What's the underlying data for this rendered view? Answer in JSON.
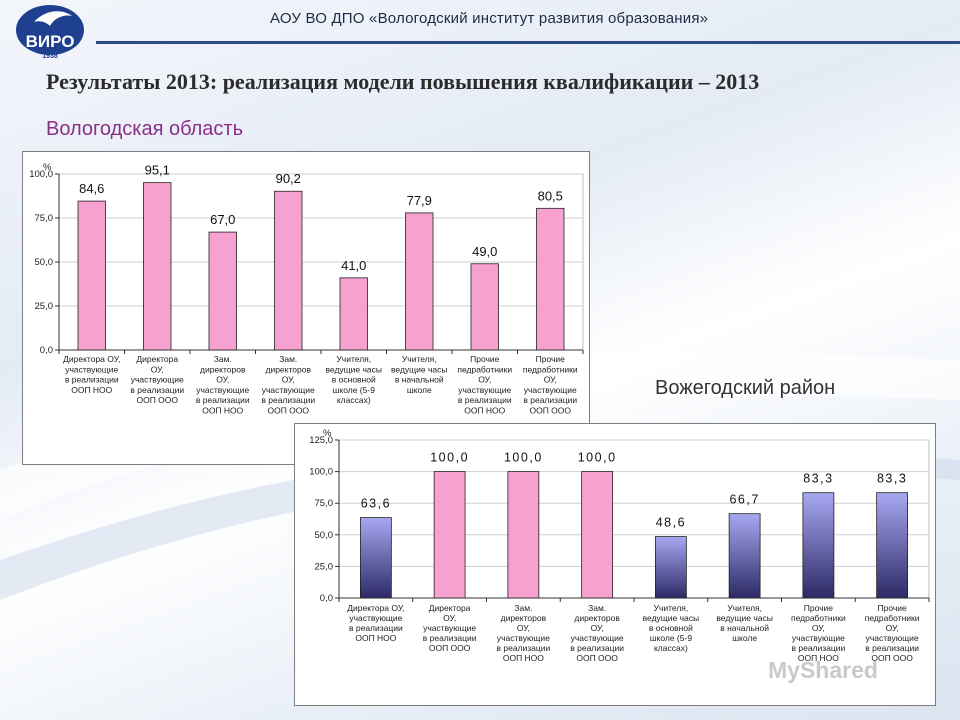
{
  "header": {
    "logo_text": "ВИРО",
    "logo_year": "1938",
    "org_title": "АОУ ВО ДПО «Вологодский институт развития образования»",
    "main_title": "Результаты 2013: реализация модели повышения квалификации – 2013"
  },
  "watermark": "MyShared",
  "colors": {
    "chart1_bar": "#f6a1cf",
    "chart2_bar_blue_top": "#a8a8f2",
    "chart2_bar_blue_bottom": "#2d2a66",
    "chart2_bar_pink": "#f6a1cf",
    "region1_title": "#8a2f88"
  },
  "chart_data": [
    {
      "type": "bar",
      "region": "Вологодская область",
      "unit_label": "%",
      "ylim": [
        0,
        100
      ],
      "yticks": [
        "0,0",
        "25,0",
        "50,0",
        "75,0",
        "100,0"
      ],
      "ytick_values": [
        0,
        25,
        50,
        75,
        100
      ],
      "categories": [
        [
          "Директора ОУ,",
          "участвующие",
          "в реализации",
          "ООП НОО"
        ],
        [
          "Директора",
          "ОУ,",
          "участвующие",
          "в реализации",
          "ООП ООО"
        ],
        [
          "Зам.",
          "директоров",
          "ОУ,",
          "участвующие",
          "в реализации",
          "ООП НОО"
        ],
        [
          "Зам.",
          "директоров",
          "ОУ,",
          "участвующие",
          "в реализации",
          "ООП ООО"
        ],
        [
          "Учителя,",
          "ведущие часы",
          "в основной",
          "школе (5-9",
          "классах)"
        ],
        [
          "Учителя,",
          "ведущие часы",
          "в начальной",
          "школе"
        ],
        [
          "Прочие",
          "педработники",
          "ОУ,",
          "участвующие",
          "в реализации",
          "ООП НОО"
        ],
        [
          "Прочие",
          "педработники",
          "ОУ,",
          "участвующие",
          "в реализации",
          "ООП ООО"
        ]
      ],
      "values": [
        84.6,
        95.1,
        67.0,
        90.2,
        41.0,
        77.9,
        49.0,
        80.5
      ],
      "value_labels": [
        "84,6",
        "95,1",
        "67,0",
        "90,2",
        "41,0",
        "77,9",
        "49,0",
        "80,5"
      ]
    },
    {
      "type": "bar",
      "region": "Вожегодский район",
      "unit_label": "%",
      "ylim": [
        0,
        125
      ],
      "yticks": [
        "0,0",
        "25,0",
        "50,0",
        "75,0",
        "100,0",
        "125,0"
      ],
      "ytick_values": [
        0,
        25,
        50,
        75,
        100,
        125
      ],
      "categories": [
        [
          "Директора ОУ,",
          "участвующие",
          "в реализации",
          "ООП НОО"
        ],
        [
          "Директора",
          "ОУ,",
          "участвующие",
          "в реализации",
          "ООП ООО"
        ],
        [
          "Зам.",
          "директоров",
          "ОУ,",
          "участвующие",
          "в реализации",
          "ООП НОО"
        ],
        [
          "Зам.",
          "директоров",
          "ОУ,",
          "участвующие",
          "в реализации",
          "ООП ООО"
        ],
        [
          "Учителя,",
          "ведущие часы",
          "в основной",
          "школе (5-9",
          "классах)"
        ],
        [
          "Учителя,",
          "ведущие часы",
          "в начальной",
          "школе"
        ],
        [
          "Прочие",
          "педработники",
          "ОУ,",
          "участвующие",
          "в реализации",
          "ООП НОО"
        ],
        [
          "Прочие",
          "педработники",
          "ОУ,",
          "участвующие",
          "в реализации",
          "ООП ООО"
        ]
      ],
      "values": [
        63.6,
        100.0,
        100.0,
        100.0,
        48.6,
        66.7,
        83.3,
        83.3
      ],
      "value_labels": [
        "63,6",
        "100,0",
        "100,0",
        "100,0",
        "48,6",
        "66,7",
        "83,3",
        "83,3"
      ],
      "bar_styles": [
        "blue",
        "pink",
        "pink",
        "pink",
        "blue",
        "blue",
        "blue",
        "blue"
      ]
    }
  ]
}
